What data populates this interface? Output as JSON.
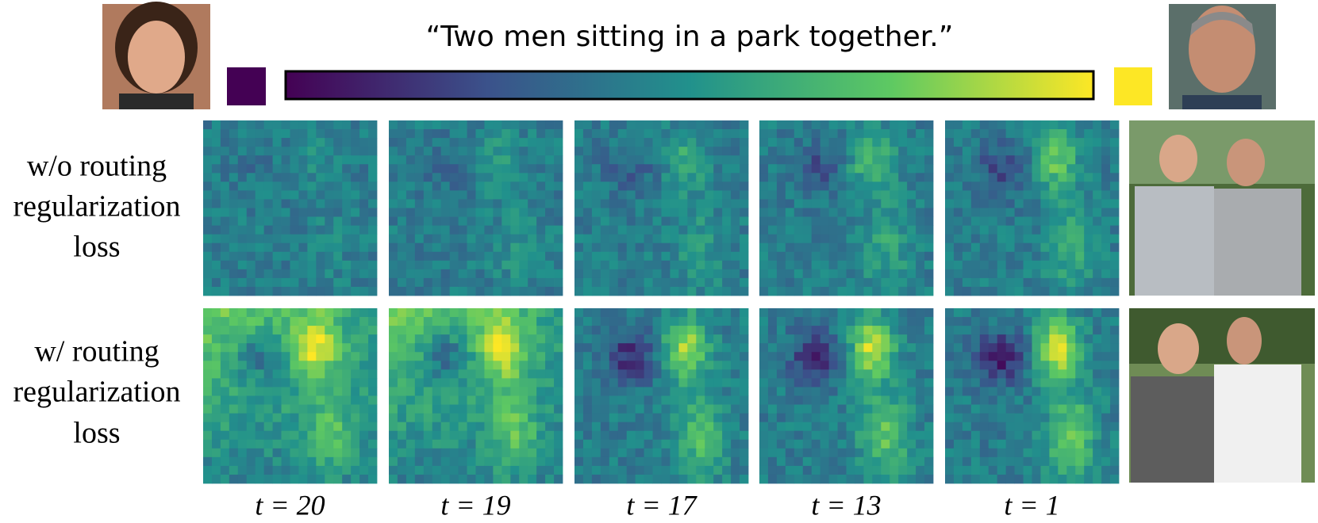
{
  "figure": {
    "prompt": "“Two men sitting in a park together.”",
    "rows": [
      {
        "label_lines": [
          "w/o routing",
          "regularization",
          "loss"
        ]
      },
      {
        "label_lines": [
          "w/ routing",
          "regularization",
          "loss"
        ]
      }
    ],
    "timesteps": [
      "t = 20",
      "t = 19",
      "t = 17",
      "t = 13",
      "t = 1"
    ]
  }
}
